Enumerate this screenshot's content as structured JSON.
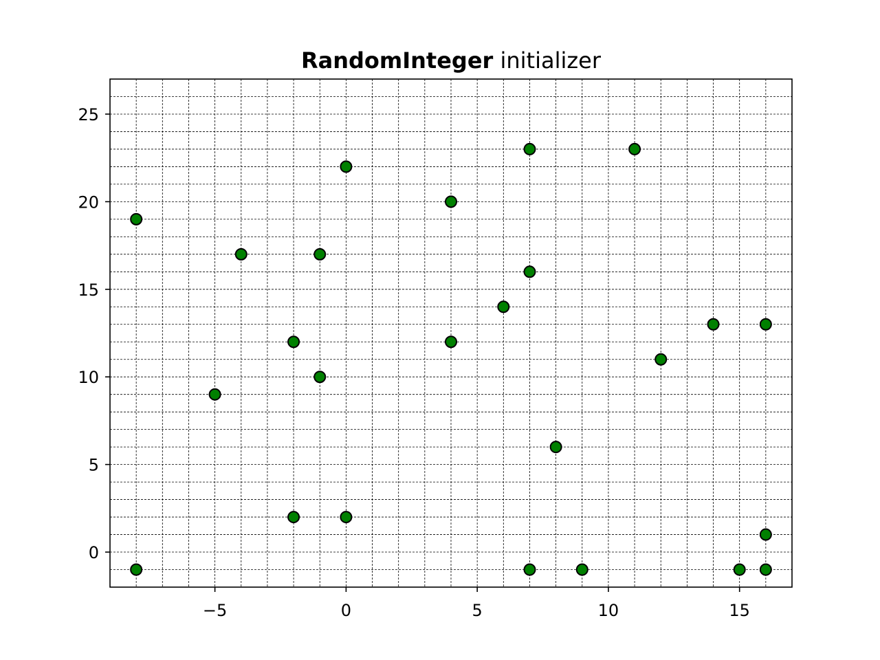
{
  "chart_data": {
    "type": "scatter",
    "title": {
      "bold_part": "RandomInteger",
      "regular_part": " initializer"
    },
    "xlabel": "",
    "ylabel": "",
    "xlim": [
      -9,
      17
    ],
    "ylim": [
      -2,
      27
    ],
    "x_ticks": [
      -5,
      0,
      5,
      10,
      15
    ],
    "x_tick_labels": [
      "−5",
      "0",
      "5",
      "10",
      "15"
    ],
    "y_ticks": [
      0,
      5,
      10,
      15,
      20,
      25
    ],
    "y_tick_labels": [
      "0",
      "5",
      "10",
      "15",
      "20",
      "25"
    ],
    "grid": true,
    "minor_grid": true,
    "marker_fill": "#008000",
    "marker_edge": "#000000",
    "points": [
      {
        "x": -8,
        "y": 19
      },
      {
        "x": -8,
        "y": -1
      },
      {
        "x": -5,
        "y": 9
      },
      {
        "x": -4,
        "y": 17
      },
      {
        "x": -2,
        "y": 12
      },
      {
        "x": -2,
        "y": 2
      },
      {
        "x": -1,
        "y": 17
      },
      {
        "x": -1,
        "y": 10
      },
      {
        "x": 0,
        "y": 22
      },
      {
        "x": 0,
        "y": 2
      },
      {
        "x": 4,
        "y": 20
      },
      {
        "x": 4,
        "y": 12
      },
      {
        "x": 6,
        "y": 14
      },
      {
        "x": 7,
        "y": 23
      },
      {
        "x": 7,
        "y": 16
      },
      {
        "x": 7,
        "y": -1
      },
      {
        "x": 8,
        "y": 6
      },
      {
        "x": 9,
        "y": -1
      },
      {
        "x": 11,
        "y": 23
      },
      {
        "x": 12,
        "y": 11
      },
      {
        "x": 14,
        "y": 13
      },
      {
        "x": 15,
        "y": -1
      },
      {
        "x": 16,
        "y": 13
      },
      {
        "x": 16,
        "y": 1
      },
      {
        "x": 16,
        "y": -1
      }
    ]
  }
}
